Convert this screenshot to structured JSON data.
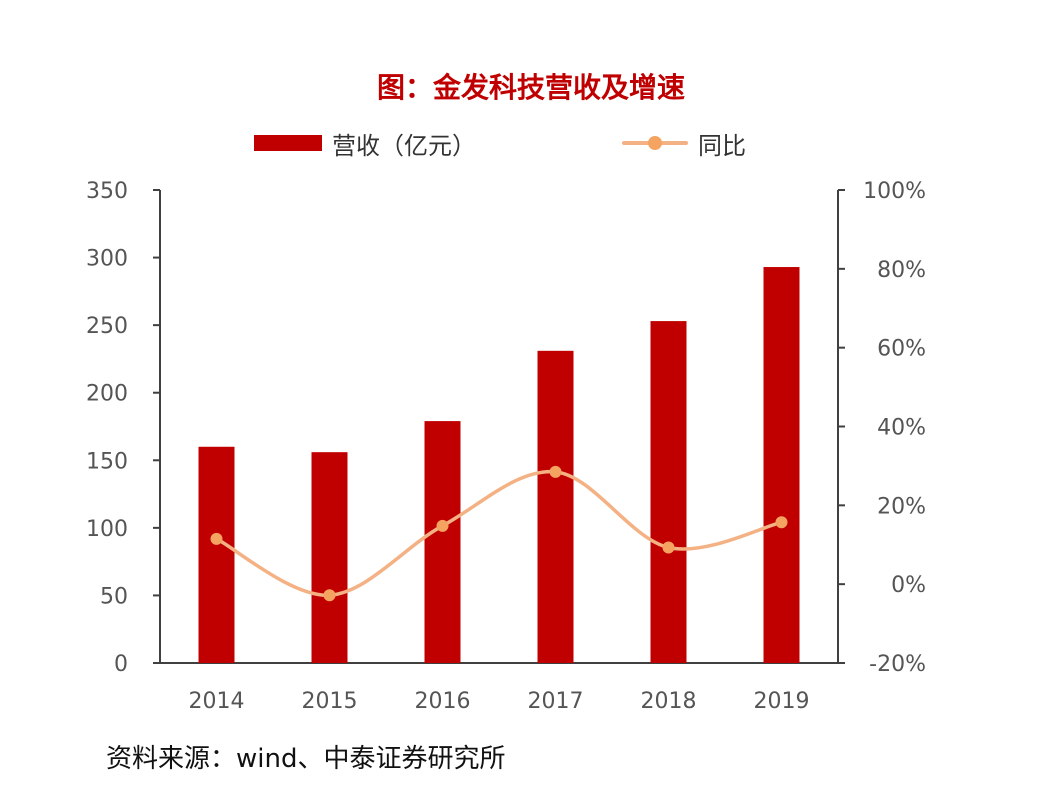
{
  "chart_data": {
    "type": "bar",
    "title": "图：金发科技营收及增速",
    "categories": [
      "2014",
      "2015",
      "2016",
      "2017",
      "2018",
      "2019"
    ],
    "series": [
      {
        "name": "营收（亿元）",
        "type": "bar",
        "axis": "left",
        "values": [
          160,
          156,
          179,
          231,
          253,
          293
        ]
      },
      {
        "name": "同比",
        "type": "line",
        "axis": "right",
        "values": [
          11.5,
          -2.8,
          14.8,
          28.5,
          9.3,
          15.7
        ]
      }
    ],
    "y_left": {
      "ylim": [
        0,
        350
      ],
      "ticks": [
        "0",
        "50",
        "100",
        "150",
        "200",
        "250",
        "300",
        "350"
      ]
    },
    "y_right": {
      "ylim": [
        -20,
        100
      ],
      "ticks": [
        "-20%",
        "0%",
        "20%",
        "40%",
        "60%",
        "80%",
        "100%"
      ]
    },
    "legend_position": "top-center",
    "grid": false,
    "colors": {
      "bar": "#c00000",
      "line": "#f4b183",
      "marker": "#f4a460",
      "title": "#c00000",
      "axis": "#404040"
    }
  },
  "source": "资料来源：wind、中泰证券研究所"
}
